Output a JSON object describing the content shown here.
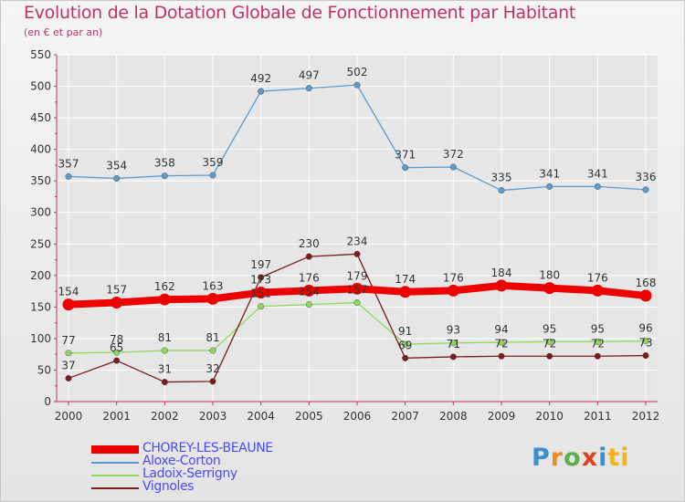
{
  "header": {
    "title": "Evolution de la Dotation Globale de Fonctionnement par Habitant",
    "subtitle": "(en € et par an)"
  },
  "logo": {
    "text": "Proxiti"
  },
  "colors": {
    "accent": "#c0306a",
    "axis": "#c0306a",
    "grid": "#ffffff"
  },
  "chart_data": {
    "type": "line",
    "title": "Evolution de la Dotation Globale de Fonctionnement par Habitant",
    "subtitle": "(en € et par an)",
    "xlabel": "",
    "ylabel": "",
    "x": [
      "2000",
      "2001",
      "2002",
      "2003",
      "2004",
      "2005",
      "2006",
      "2007",
      "2008",
      "2009",
      "2010",
      "2011",
      "2012"
    ],
    "ylim": [
      0,
      550
    ],
    "yticks": [
      0,
      50,
      100,
      150,
      200,
      250,
      300,
      350,
      400,
      450,
      500,
      550
    ],
    "grid": true,
    "legend_position": "bottom-left",
    "series": [
      {
        "name": "CHOREY-LES-BEAUNE",
        "color": "#ee0000",
        "values": [
          154,
          157,
          162,
          163,
          173,
          176,
          179,
          174,
          176,
          184,
          180,
          176,
          168
        ]
      },
      {
        "name": "Aloxe-Corton",
        "color": "#5b9bd0",
        "values": [
          357,
          354,
          358,
          359,
          492,
          497,
          502,
          371,
          372,
          335,
          341,
          341,
          336
        ]
      },
      {
        "name": "Ladoix-Serrigny",
        "color": "#8ed85a",
        "values": [
          77,
          78,
          81,
          81,
          151,
          154,
          157,
          91,
          93,
          94,
          95,
          95,
          96
        ]
      },
      {
        "name": "Vignoles",
        "color": "#7a1c1c",
        "values": [
          37,
          65,
          31,
          32,
          197,
          230,
          234,
          69,
          71,
          72,
          72,
          72,
          73
        ]
      }
    ],
    "data_labels": {
      "CHOREY-LES-BEAUNE": [
        "154",
        "157",
        "162",
        "163",
        "173",
        "176",
        "179",
        "174",
        "176",
        "184",
        "180",
        "176",
        "168"
      ],
      "Aloxe-Corton": [
        "357",
        "354",
        "358",
        "359",
        "492",
        "497",
        "502",
        "371",
        "372",
        "335",
        "341",
        "341",
        "336"
      ],
      "Ladoix-Serrigny": [
        "77",
        "78",
        "81",
        "81",
        "151",
        "154",
        "157",
        "91",
        "93",
        "94",
        "95",
        "95",
        "96"
      ],
      "Vignoles": [
        "37",
        "65",
        "31",
        "32",
        "197",
        "230",
        "234",
        "69",
        "71",
        "72",
        "72",
        "72",
        "73"
      ]
    }
  }
}
